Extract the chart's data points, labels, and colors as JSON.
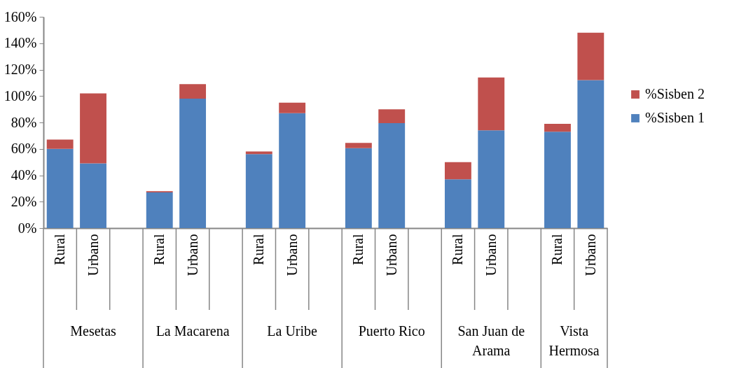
{
  "chart_data": {
    "type": "bar",
    "stacked": true,
    "categories": [
      "Rural",
      "Urbano",
      null,
      "Rural",
      "Urbano",
      null,
      "Rural",
      "Urbano",
      null,
      "Rural",
      "Urbano",
      null,
      "Rural",
      "Urbano",
      null,
      "Rural",
      "Urbano"
    ],
    "series": [
      {
        "name": "%Sisben 1",
        "color": "#4f81bd",
        "values": [
          60,
          49,
          null,
          27,
          98,
          null,
          56,
          87,
          null,
          60.5,
          79.5,
          null,
          37,
          74,
          null,
          73,
          112
        ]
      },
      {
        "name": "%Sisben 2",
        "color": "#c0504d",
        "values": [
          7,
          53,
          null,
          1,
          11,
          null,
          2,
          8,
          null,
          4,
          10.5,
          null,
          13,
          40,
          null,
          6,
          36
        ]
      }
    ],
    "annotations": [
      "Mesetas",
      "La Macarena",
      "La Uribe",
      "Puerto Rico",
      "San Juan de Arama",
      "Vista Hermosa"
    ],
    "ylim": [
      0,
      160
    ],
    "yticks": [
      {
        "value": 0,
        "label": "0%"
      },
      {
        "value": 20,
        "label": "20%"
      },
      {
        "value": 40,
        "label": "40%"
      },
      {
        "value": 60,
        "label": "60%"
      },
      {
        "value": 80,
        "label": "80%"
      },
      {
        "value": 100,
        "label": "100%"
      },
      {
        "value": 120,
        "label": "120%"
      },
      {
        "value": 140,
        "label": "140%"
      },
      {
        "value": 160,
        "label": "160%"
      }
    ],
    "grid": false,
    "legend": "right"
  }
}
